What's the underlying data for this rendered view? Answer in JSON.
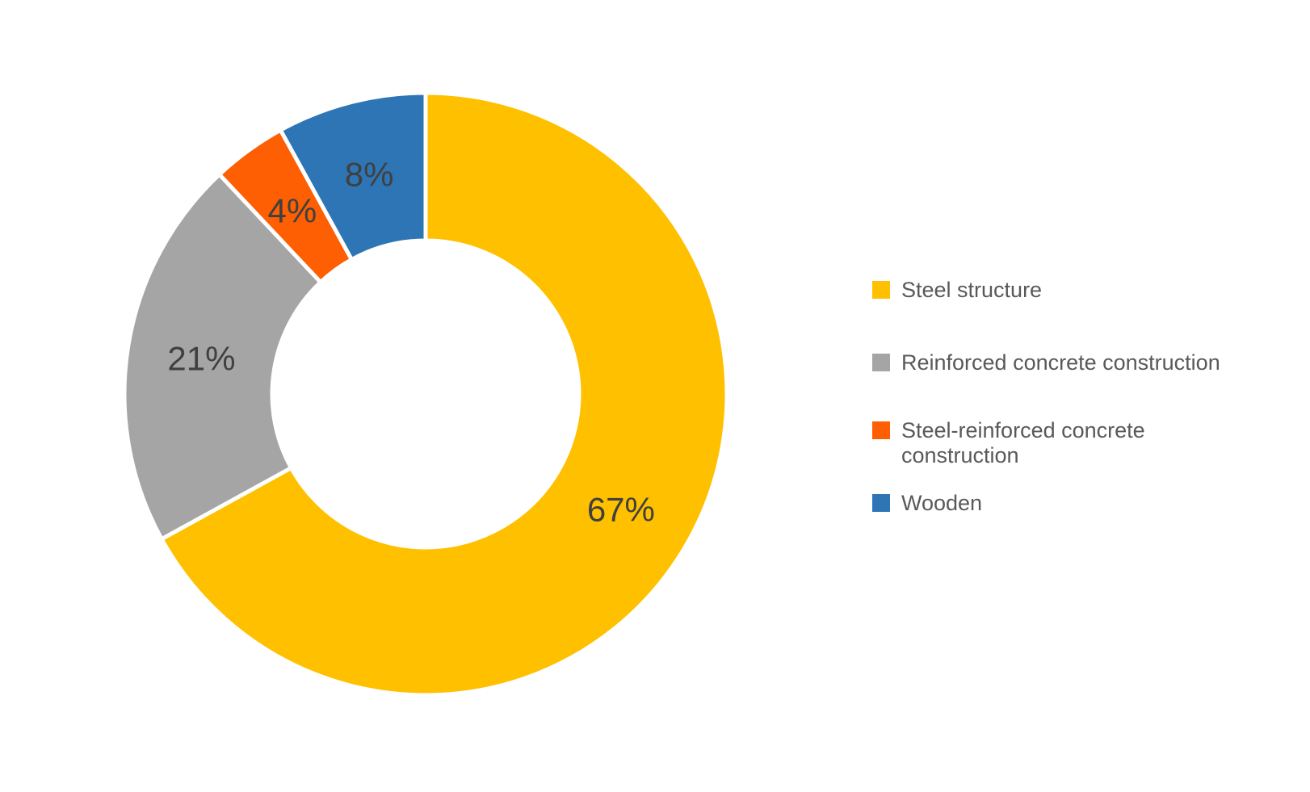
{
  "background_color": "#ffffff",
  "chart_data": {
    "type": "pie",
    "subtype": "donut",
    "title": "",
    "unit": "%",
    "categories": [
      "Steel structure",
      "Reinforced concrete construction",
      "Steel-reinforced concrete construction",
      "Wooden"
    ],
    "values": [
      67,
      21,
      4,
      8
    ],
    "slices": [
      {
        "label": "Steel structure",
        "value": 67,
        "display": "67%",
        "color": "#FFC000"
      },
      {
        "label": "Reinforced concrete construction",
        "value": 21,
        "display": "21%",
        "color": "#A5A5A5"
      },
      {
        "label": "Steel-reinforced concrete construction",
        "value": 4,
        "display": "4%",
        "color": "#FD5F02"
      },
      {
        "label": "Wooden",
        "value": 8,
        "display": "8%",
        "color": "#2E75B6"
      }
    ],
    "start_angle_deg": 0,
    "direction": "clockwise",
    "hole_ratio": 0.51,
    "grid": "off",
    "legend_position": "right",
    "data_labels": "percent",
    "data_label_color": "#404040",
    "legend_text_color": "#595959",
    "slice_border_color": "#ffffff"
  }
}
